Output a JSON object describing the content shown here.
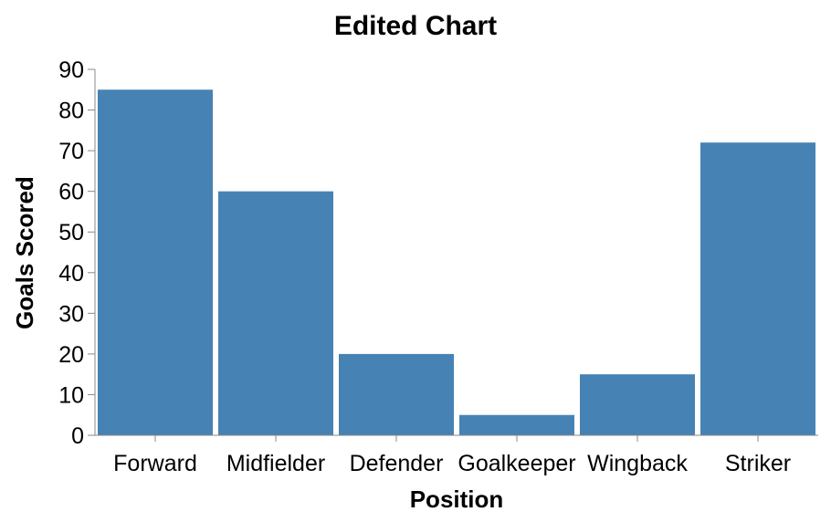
{
  "chart_data": {
    "type": "bar",
    "title": "Edited Chart",
    "xlabel": "Position",
    "ylabel": "Goals Scored",
    "categories": [
      "Forward",
      "Midfielder",
      "Defender",
      "Goalkeeper",
      "Wingback",
      "Striker"
    ],
    "values": [
      85,
      60,
      20,
      5,
      15,
      72
    ],
    "ylim": [
      0,
      90
    ],
    "yticks": [
      0,
      10,
      20,
      30,
      40,
      50,
      60,
      70,
      80,
      90
    ],
    "bar_color": "#4682b4",
    "grid": false,
    "legend": "none"
  }
}
